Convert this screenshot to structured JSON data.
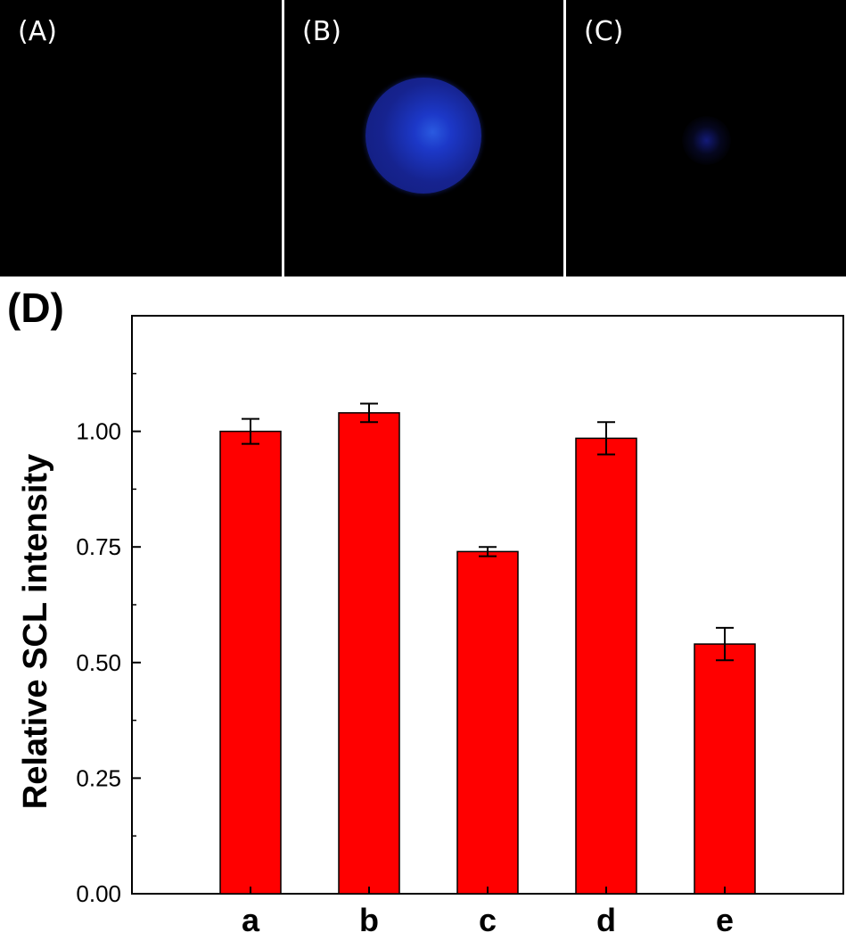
{
  "panels": [
    {
      "label": "(A)"
    },
    {
      "label": "(B)"
    },
    {
      "label": "(C)"
    }
  ],
  "colors": {
    "bar": "#ff0000",
    "panel_background": "#000000",
    "glow": "#1c38c8"
  },
  "chart_data": {
    "panel_label": "(D)",
    "type": "bar",
    "categories": [
      "a",
      "b",
      "c",
      "d",
      "e"
    ],
    "values": [
      1.0,
      1.04,
      0.74,
      0.985,
      0.54
    ],
    "errors": [
      0.027,
      0.02,
      0.01,
      0.035,
      0.035
    ],
    "ylabel": "Relative SCL intensity",
    "xlabel": "",
    "ylim": [
      0,
      1.25
    ],
    "yticks": [
      0.0,
      0.25,
      0.5,
      0.75,
      1.0
    ],
    "ytick_labels": [
      "0.00",
      "0.25",
      "0.50",
      "0.75",
      "1.00"
    ],
    "grid": false,
    "legend": "none"
  }
}
